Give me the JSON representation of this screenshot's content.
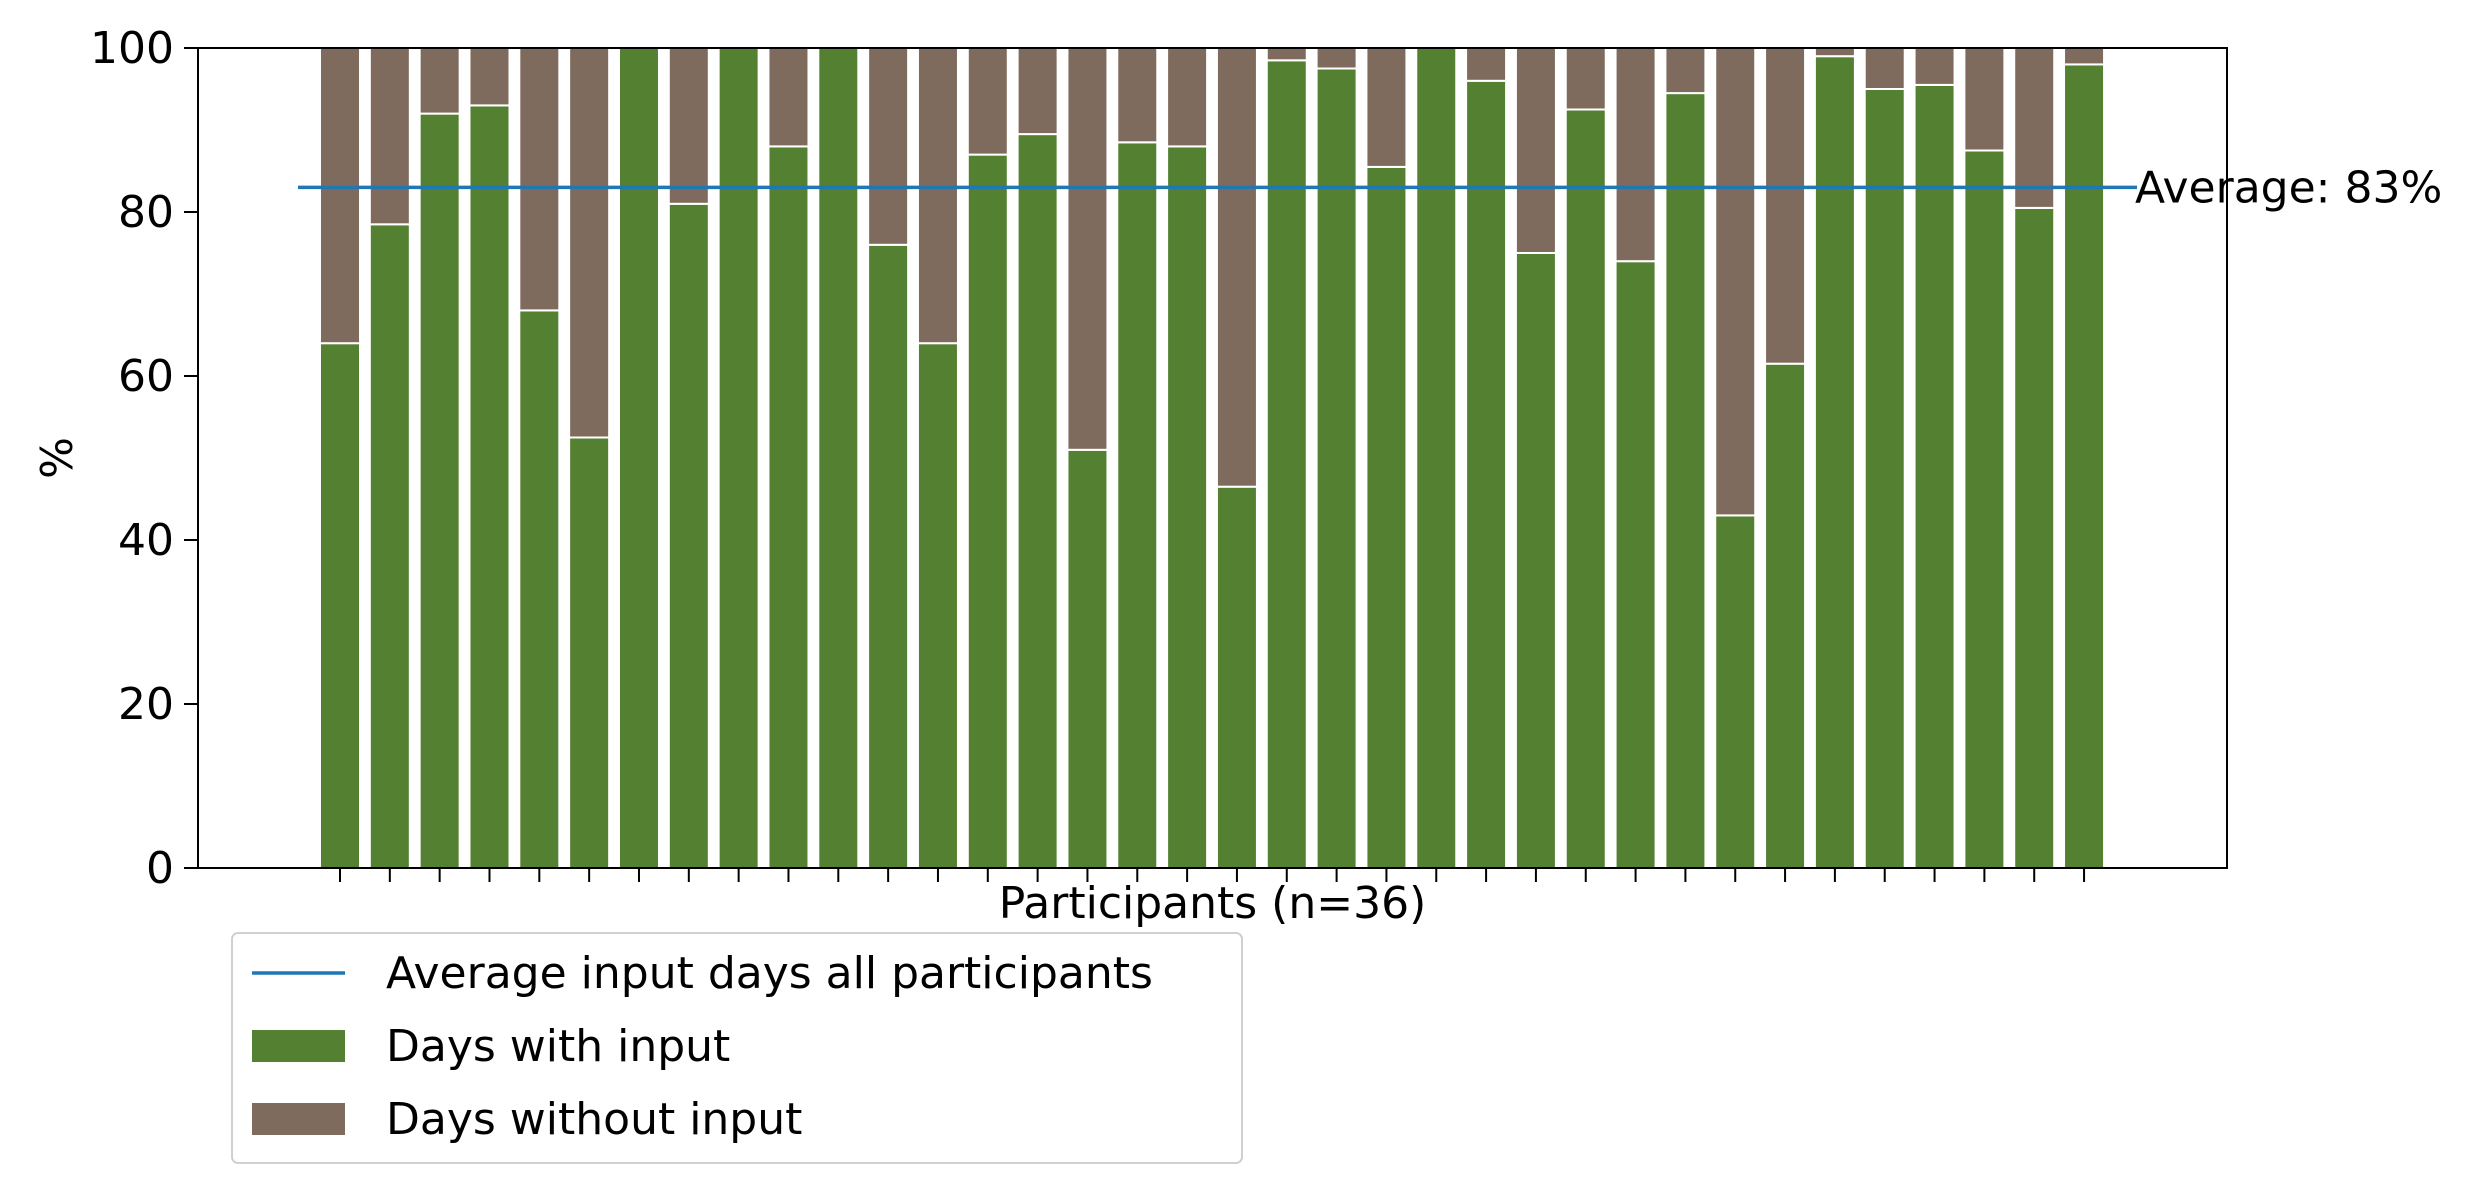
{
  "chart_data": {
    "type": "bar",
    "stacked": true,
    "xlabel": "Participants (n=36)",
    "ylabel": "%",
    "ylim": [
      0,
      100
    ],
    "yticks": [
      "0",
      "20",
      "40",
      "60",
      "80",
      "100"
    ],
    "x_tick_labels_shown": false,
    "grid": false,
    "series": [
      {
        "name": "Days with input",
        "color": "#548032",
        "values": [
          64,
          78.5,
          92,
          93,
          68,
          52.5,
          100,
          81,
          100,
          88,
          100,
          76,
          64,
          87,
          89.5,
          51,
          88.5,
          88,
          46.5,
          98.5,
          97.5,
          85.5,
          100,
          96,
          75,
          92.5,
          74,
          94.5,
          43,
          61.5,
          99,
          95,
          95.5,
          87.5,
          80.5,
          98
        ]
      },
      {
        "name": "Days without input",
        "color": "#7f6b5d",
        "values": [
          36,
          21.5,
          8,
          7,
          32,
          47.5,
          0,
          19,
          0,
          12,
          0,
          24,
          36,
          13,
          10.5,
          49,
          11.5,
          12,
          53.5,
          1.5,
          2.5,
          14.5,
          0,
          4,
          25,
          7.5,
          26,
          5.5,
          57,
          38.5,
          1,
          5,
          4.5,
          12.5,
          19.5,
          2
        ]
      }
    ],
    "average_line": {
      "name": "Average input days all participants",
      "value": 83,
      "label": "Average: 83%",
      "color": "#1f77b4"
    },
    "legend": {
      "placement": "below-left",
      "entries": [
        "Average input days all participants",
        "Days with input",
        "Days without input"
      ]
    }
  }
}
